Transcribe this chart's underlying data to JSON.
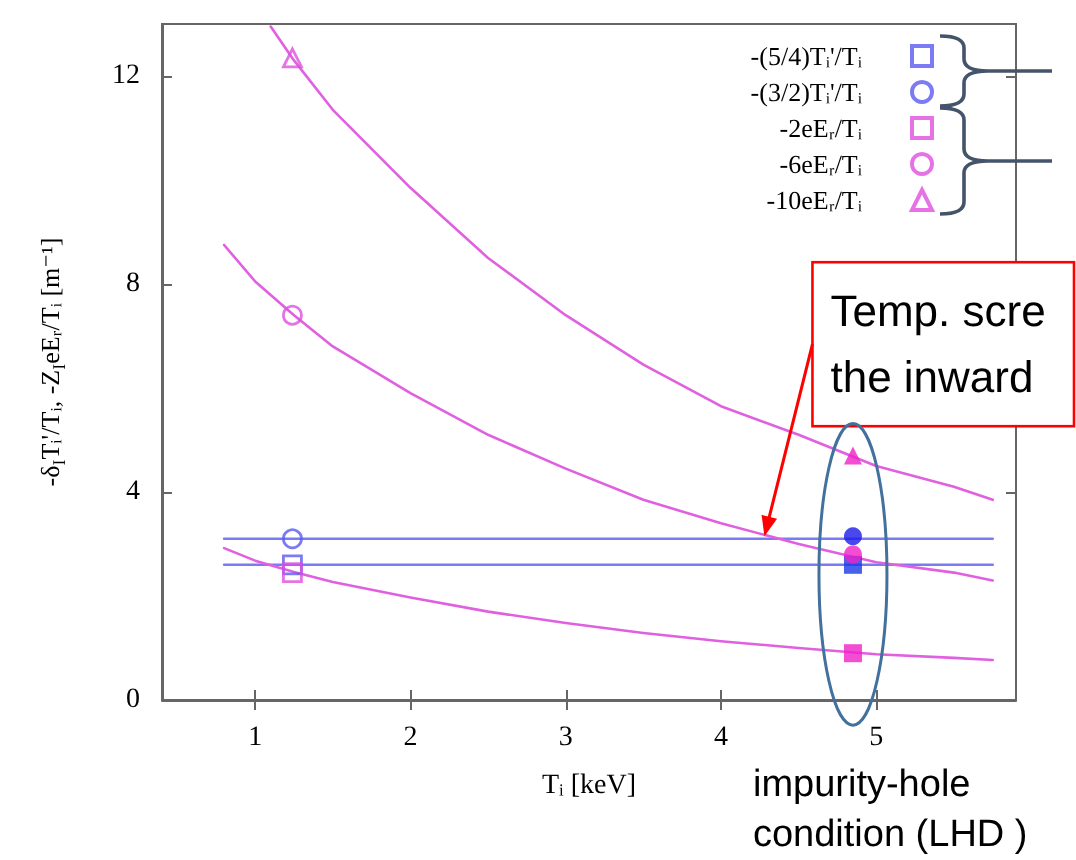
{
  "chart_data": {
    "type": "line",
    "xlabel": "Tᵢ [keV]",
    "ylabel": "-δ$_{I}$Tᵢ'/Tᵢ, -Z$_{I}$eEᵣ/Tᵢ [m⁻¹]",
    "xlim": [
      0.4,
      5.9
    ],
    "xticks": [
      1,
      2,
      3,
      4,
      5
    ],
    "ylim": [
      0,
      13
    ],
    "yticks": [
      0,
      4,
      8,
      12
    ],
    "legend": "top right",
    "series": [
      {
        "marker": "none",
        "color": "#7a7af2",
        "x": [
          0.8,
          5.75
        ],
        "values": [
          2.6,
          2.6
        ]
      },
      {
        "marker": "none",
        "color": "#7a7af2",
        "x": [
          0.8,
          5.75
        ],
        "values": [
          3.1,
          3.1
        ]
      },
      {
        "marker": "none",
        "color": "#e060e0",
        "x": [
          0.8,
          1,
          1.25,
          1.5,
          2,
          2.5,
          3,
          3.5,
          4,
          4.5,
          5,
          5.5,
          5.75
        ],
        "values": [
          2.92,
          2.68,
          2.46,
          2.27,
          1.97,
          1.7,
          1.48,
          1.29,
          1.13,
          1.0,
          0.88,
          0.81,
          0.77
        ]
      },
      {
        "marker": "none",
        "color": "#e060e0",
        "x": [
          0.8,
          1,
          1.25,
          1.5,
          2,
          2.5,
          3,
          3.5,
          4,
          4.5,
          5,
          5.5,
          5.75
        ],
        "values": [
          8.75,
          8.05,
          7.4,
          6.8,
          5.9,
          5.1,
          4.45,
          3.85,
          3.4,
          3.0,
          2.65,
          2.45,
          2.3
        ]
      },
      {
        "marker": "none",
        "color": "#e060e0",
        "x": [
          1.1,
          1.25,
          1.5,
          2,
          2.5,
          3,
          3.5,
          4,
          4.5,
          5,
          5.5,
          5.75
        ],
        "values": [
          12.95,
          12.3,
          11.35,
          9.85,
          8.5,
          7.4,
          6.45,
          5.65,
          5.1,
          4.5,
          4.1,
          3.85
        ]
      },
      {
        "name": "-(5/4)Tᵢ'/Tᵢ",
        "type": "scatter",
        "marker": "square",
        "color": "#5a5af0",
        "x": [
          1.24
        ],
        "values": [
          2.6
        ]
      },
      {
        "name": "-(3/2)Tᵢ'/Tᵢ",
        "type": "scatter",
        "marker": "circle",
        "color": "#5a5af0",
        "x": [
          1.24
        ],
        "values": [
          3.1
        ]
      },
      {
        "name": "-2eEᵣ/Tᵢ",
        "type": "scatter",
        "marker": "square",
        "color": "#e050e0",
        "x": [
          1.24
        ],
        "values": [
          2.45
        ]
      },
      {
        "name": "-6eEᵣ/Tᵢ",
        "type": "scatter",
        "marker": "circle",
        "color": "#e050e0",
        "x": [
          1.24
        ],
        "values": [
          7.4
        ]
      },
      {
        "name": "-10eEᵣ/Tᵢ",
        "type": "scatter",
        "marker": "triangle",
        "color": "#e050e0",
        "x": [
          1.24
        ],
        "values": [
          12.35
        ]
      },
      {
        "type": "scatter",
        "marker": "square",
        "color": "#1a3ae8",
        "x": [
          4.85
        ],
        "values": [
          2.6
        ]
      },
      {
        "type": "scatter",
        "marker": "circle",
        "color": "#1a1ae8",
        "x": [
          4.85
        ],
        "values": [
          3.15
        ]
      },
      {
        "type": "scatter",
        "marker": "square",
        "color": "#f020c8",
        "x": [
          4.85
        ],
        "values": [
          0.9
        ]
      },
      {
        "type": "scatter",
        "marker": "circle",
        "color": "#f020c8",
        "x": [
          4.85
        ],
        "values": [
          2.8
        ]
      },
      {
        "type": "scatter",
        "marker": "triangle",
        "color": "#f020c8",
        "x": [
          4.85
        ],
        "values": [
          4.7
        ]
      }
    ],
    "annotations": [
      {
        "text": "Temp. scre\nthe inward",
        "x": 4.28,
        "y": 3.15
      },
      "impurity-hole\ncondition (LHD )"
    ]
  }
}
